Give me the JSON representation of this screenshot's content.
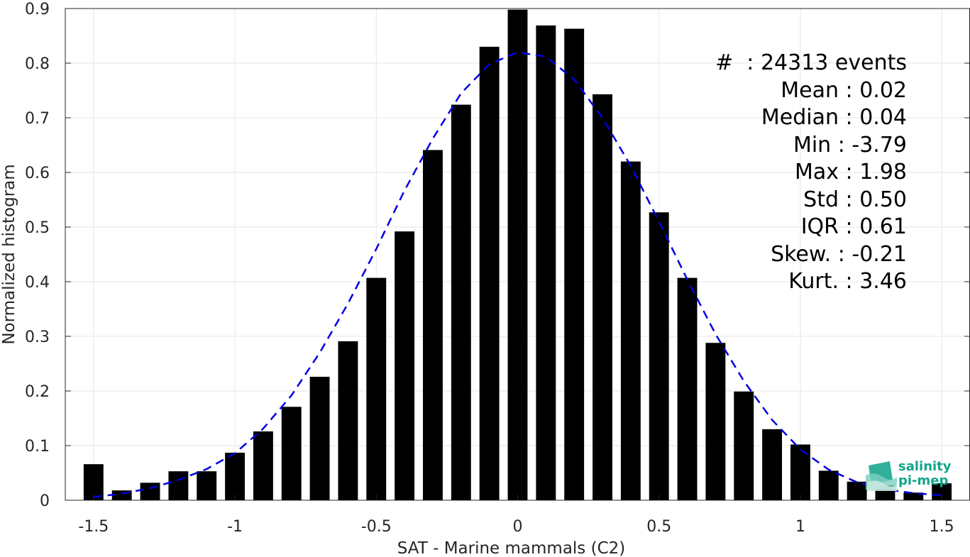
{
  "chart_data": {
    "type": "bar",
    "xlabel": "SAT - Marine mammals (C2)",
    "ylabel": "Normalized histogram",
    "xlim": [
      -1.6,
      1.6
    ],
    "ylim": [
      0,
      0.9
    ],
    "xticks": [
      -1.5,
      -1,
      -0.5,
      0,
      0.5,
      1,
      1.5
    ],
    "xtick_labels": [
      "-1.5",
      "-1",
      "-0.5",
      "0",
      "0.5",
      "1",
      "1.5"
    ],
    "yticks": [
      0,
      0.1,
      0.2,
      0.3,
      0.4,
      0.5,
      0.6,
      0.7,
      0.8,
      0.9
    ],
    "ytick_labels": [
      "0",
      "0.1",
      "0.2",
      "0.3",
      "0.4",
      "0.5",
      "0.6",
      "0.7",
      "0.8",
      "0.9"
    ],
    "grid": true,
    "bar_color": "#000000",
    "bar_width": 0.07,
    "bars": {
      "x": [
        -1.5,
        -1.4,
        -1.3,
        -1.2,
        -1.1,
        -1.0,
        -0.9,
        -0.8,
        -0.7,
        -0.6,
        -0.5,
        -0.4,
        -0.3,
        -0.2,
        -0.1,
        0.0,
        0.1,
        0.2,
        0.3,
        0.4,
        0.5,
        0.6,
        0.7,
        0.8,
        0.9,
        1.0,
        1.1,
        1.2,
        1.3,
        1.4,
        1.5
      ],
      "values": [
        0.066,
        0.018,
        0.032,
        0.053,
        0.053,
        0.087,
        0.126,
        0.171,
        0.226,
        0.291,
        0.407,
        0.492,
        0.641,
        0.724,
        0.83,
        0.898,
        0.869,
        0.863,
        0.743,
        0.62,
        0.527,
        0.407,
        0.288,
        0.199,
        0.13,
        0.102,
        0.054,
        0.034,
        0.027,
        0.014,
        0.031
      ]
    },
    "fit": {
      "style": "dashed",
      "color": "#0000e0",
      "x": [
        -1.5,
        -1.4,
        -1.3,
        -1.2,
        -1.1,
        -1.0,
        -0.9,
        -0.8,
        -0.7,
        -0.6,
        -0.5,
        -0.4,
        -0.3,
        -0.2,
        -0.1,
        0.0,
        0.1,
        0.2,
        0.3,
        0.4,
        0.5,
        0.6,
        0.7,
        0.8,
        0.9,
        1.0,
        1.1,
        1.2,
        1.3,
        1.4,
        1.5
      ],
      "values": [
        0.006,
        0.012,
        0.022,
        0.037,
        0.057,
        0.086,
        0.131,
        0.192,
        0.27,
        0.36,
        0.46,
        0.567,
        0.662,
        0.745,
        0.798,
        0.82,
        0.812,
        0.77,
        0.7,
        0.612,
        0.51,
        0.404,
        0.304,
        0.218,
        0.147,
        0.093,
        0.056,
        0.033,
        0.02,
        0.013,
        0.009
      ]
    },
    "stats": [
      {
        "label": "#  : 24313 events"
      },
      {
        "label": "Mean : 0.02"
      },
      {
        "label": "Median : 0.04"
      },
      {
        "label": "Min : -3.79"
      },
      {
        "label": "Max : 1.98"
      },
      {
        "label": "Std : 0.50"
      },
      {
        "label": "IQR : 0.61"
      },
      {
        "label": "Skew. : -0.21"
      },
      {
        "label": "Kurt. : 3.46"
      }
    ]
  },
  "logo": {
    "line1": "salinity",
    "line2": "pi-mep",
    "color": "#12a58b"
  }
}
